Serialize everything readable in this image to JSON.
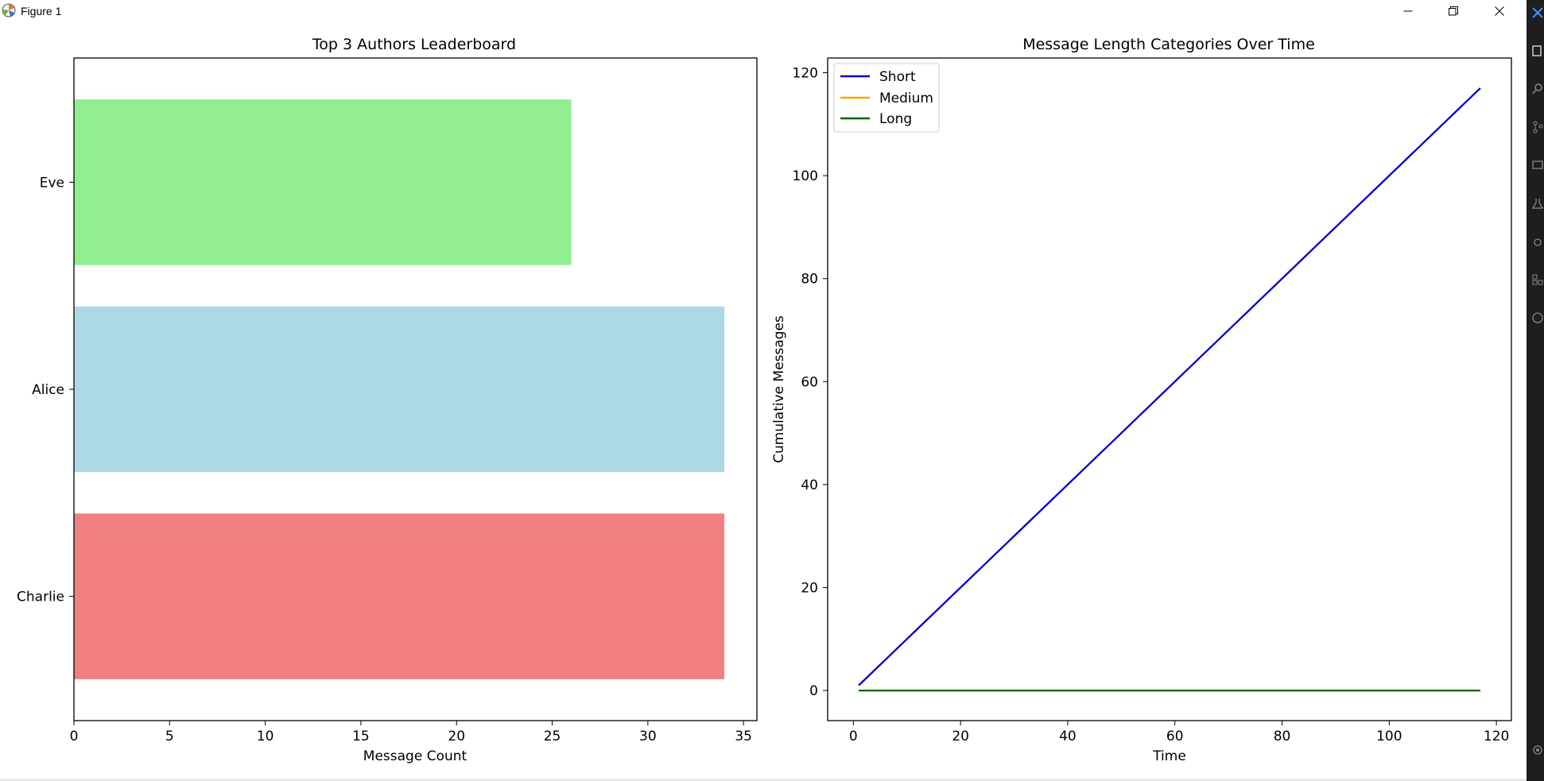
{
  "window": {
    "title": "Figure 1",
    "controls": {
      "minimize": "minimize",
      "maximize": "restore",
      "close": "close"
    }
  },
  "charts": {
    "left": {
      "title": "Top 3 Authors Leaderboard",
      "xlabel": "Message Count",
      "xticks": [
        "0",
        "5",
        "10",
        "15",
        "20",
        "25",
        "30",
        "35"
      ]
    },
    "right": {
      "title": "Message Length Categories Over Time",
      "xlabel": "Time",
      "ylabel": "Cumulative Messages",
      "xticks": [
        "0",
        "20",
        "40",
        "60",
        "80",
        "100",
        "120"
      ],
      "yticks": [
        "0",
        "20",
        "40",
        "60",
        "80",
        "100",
        "120"
      ],
      "legend": [
        "Short",
        "Medium",
        "Long"
      ]
    }
  },
  "chart_data": [
    {
      "type": "bar",
      "orientation": "horizontal",
      "title": "Top 3 Authors Leaderboard",
      "xlabel": "Message Count",
      "ylabel": "",
      "categories": [
        "Charlie",
        "Alice",
        "Eve"
      ],
      "values": [
        34,
        34,
        26
      ],
      "colors": [
        "#f08080",
        "#add8e6",
        "#90ee90"
      ],
      "xlim": [
        0,
        35.7
      ],
      "grid": false
    },
    {
      "type": "line",
      "title": "Message Length Categories Over Time",
      "xlabel": "Time",
      "ylabel": "Cumulative Messages",
      "xlim": [
        -4.8,
        122.8
      ],
      "ylim": [
        -5.85,
        122.85
      ],
      "legend_position": "top-left",
      "grid": false,
      "series": [
        {
          "name": "Short",
          "color": "#0000cd",
          "x": [
            1,
            117
          ],
          "y": [
            1,
            117
          ]
        },
        {
          "name": "Medium",
          "color": "#ffa500",
          "x": [
            1,
            117
          ],
          "y": [
            0,
            0
          ]
        },
        {
          "name": "Long",
          "color": "#006400",
          "x": [
            1,
            117
          ],
          "y": [
            0,
            0
          ]
        }
      ]
    }
  ],
  "taskbar": {
    "icons": [
      "explorer-icon",
      "search-icon",
      "source-control-icon",
      "remote-icon",
      "testing-icon",
      "debug-icon",
      "extensions-icon",
      "accounts-icon",
      "settings-icon"
    ]
  }
}
